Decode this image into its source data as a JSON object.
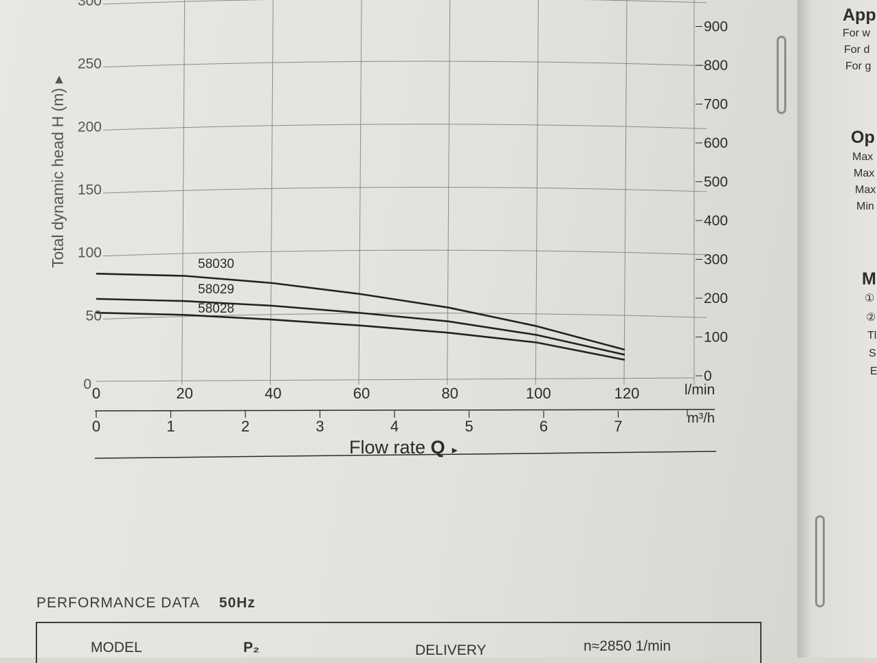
{
  "chart_data": {
    "type": "line",
    "ylabel": "Total dynamic head H (m) ▸",
    "y_ticks": [
      0,
      50,
      100,
      150,
      200,
      250,
      300
    ],
    "y_range": [
      0,
      300
    ],
    "y2_ticks": [
      0,
      100,
      200,
      300,
      400,
      500,
      600,
      700,
      800,
      900
    ],
    "x_ticks_lmin": [
      0,
      20,
      40,
      60,
      80,
      100,
      120
    ],
    "x_unit_lmin": "l/min",
    "x_ticks_m3h": [
      0,
      1,
      2,
      3,
      4,
      5,
      6,
      7
    ],
    "x_unit_m3h": "m³/h",
    "xlabel": "Flow rate",
    "xlabel_symbol": "Q",
    "xlabel_arrow": "▸",
    "grid": true,
    "series": [
      {
        "name": "58030",
        "x": [
          0,
          20,
          40,
          60,
          80,
          100,
          120
        ],
        "y": [
          80,
          79,
          74,
          66,
          56,
          42,
          24
        ]
      },
      {
        "name": "58029",
        "x": [
          0,
          20,
          40,
          60,
          80,
          100,
          120
        ],
        "y": [
          60,
          59,
          56,
          51,
          45,
          35,
          20
        ]
      },
      {
        "name": "58028",
        "x": [
          0,
          20,
          40,
          60,
          80,
          100,
          120
        ],
        "y": [
          49,
          48,
          45,
          41,
          36,
          29,
          16
        ]
      }
    ]
  },
  "side_panel": {
    "lines": [
      {
        "text": "App",
        "head": true
      },
      {
        "text": "For w"
      },
      {
        "text": "For d"
      },
      {
        "text": "For g"
      },
      {
        "text": "Op",
        "head": true
      },
      {
        "text": "Max"
      },
      {
        "text": "Max"
      },
      {
        "text": "Max"
      },
      {
        "text": "Min"
      },
      {
        "text": "M",
        "head": true
      },
      {
        "text": "①"
      },
      {
        "text": "②"
      },
      {
        "text": "Tl"
      },
      {
        "text": "S"
      },
      {
        "text": "E"
      }
    ]
  },
  "performance": {
    "title": "PERFORMANCE DATA",
    "frequency": "50Hz",
    "headers": {
      "model": "MODEL",
      "power": "P₂",
      "delivery": "DELIVERY",
      "speed": "n≈2850 1/min"
    }
  }
}
